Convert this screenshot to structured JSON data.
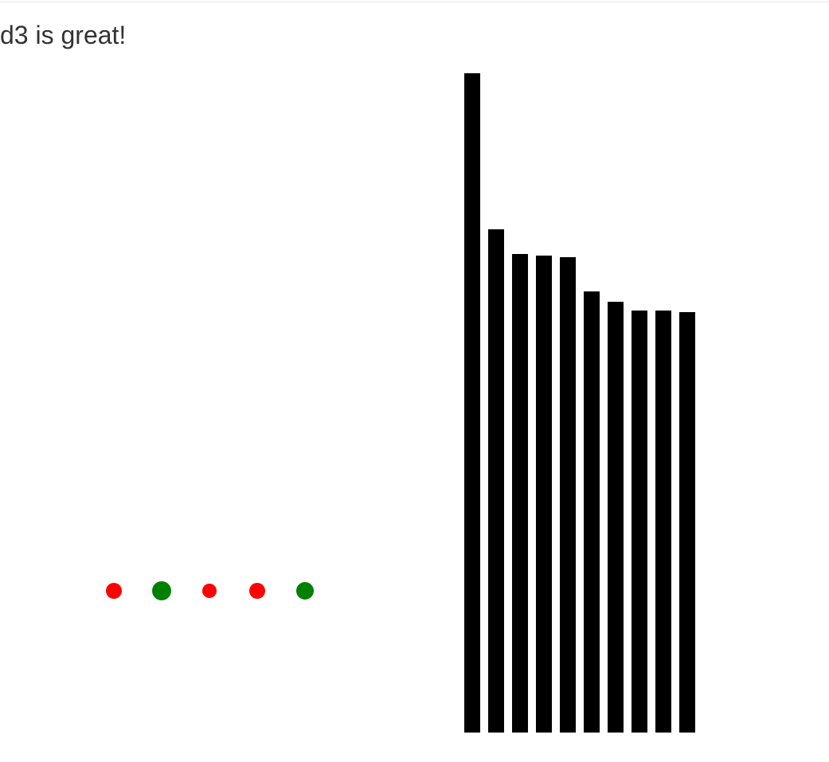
{
  "heading": "d3 is great!",
  "chart_data": [
    {
      "type": "scatter",
      "points": [
        {
          "value": 10,
          "size": "small",
          "color": "#ff0000"
        },
        {
          "value": 12,
          "size": "large",
          "color": "#008000"
        },
        {
          "value": 9,
          "size": "small",
          "color": "#ff0000"
        },
        {
          "value": 10,
          "size": "small",
          "color": "#ff0000"
        },
        {
          "value": 11,
          "size": "large",
          "color": "#008000"
        }
      ],
      "radii": [
        10,
        12,
        9,
        10,
        11
      ]
    },
    {
      "type": "bar",
      "values": [
        828,
        632,
        601,
        599,
        597,
        554,
        541,
        530,
        530,
        528
      ],
      "color": "#000000"
    }
  ]
}
